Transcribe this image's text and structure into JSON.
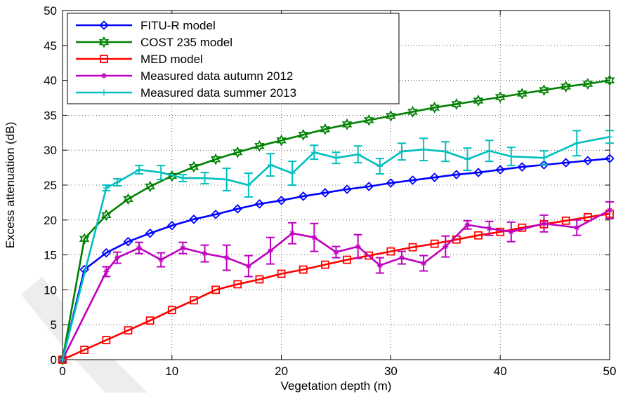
{
  "chart_data": {
    "type": "line",
    "title": "",
    "xlabel": "Vegetation depth (m)",
    "ylabel": "Excess attenuation (dB)",
    "xlim": [
      0,
      50
    ],
    "ylim": [
      0,
      50
    ],
    "xticks": [
      0,
      10,
      20,
      30,
      40,
      50
    ],
    "yticks": [
      0,
      5,
      10,
      15,
      20,
      25,
      30,
      35,
      40,
      45,
      50
    ],
    "grid": true,
    "legend_position": "top-left",
    "series": [
      {
        "name": "FITU-R model",
        "color": "#0000ff",
        "marker": "diamond",
        "x": [
          0,
          2,
          4,
          6,
          8,
          10,
          12,
          14,
          16,
          18,
          20,
          22,
          24,
          26,
          28,
          30,
          32,
          34,
          36,
          38,
          40,
          42,
          44,
          46,
          48,
          50
        ],
        "y": [
          0,
          12.9,
          15.3,
          16.9,
          18.1,
          19.2,
          20.1,
          20.8,
          21.6,
          22.3,
          22.8,
          23.4,
          23.9,
          24.4,
          24.8,
          25.3,
          25.7,
          26.1,
          26.5,
          26.8,
          27.2,
          27.6,
          27.9,
          28.2,
          28.5,
          28.8
        ]
      },
      {
        "name": "COST 235 model",
        "color": "#008000",
        "marker": "hexagram",
        "x": [
          0,
          2,
          4,
          6,
          8,
          10,
          12,
          14,
          16,
          18,
          20,
          22,
          24,
          26,
          28,
          30,
          32,
          34,
          36,
          38,
          40,
          42,
          44,
          46,
          48,
          50
        ],
        "y": [
          0,
          17.3,
          20.7,
          23.0,
          24.8,
          26.3,
          27.6,
          28.7,
          29.7,
          30.6,
          31.4,
          32.2,
          33.0,
          33.7,
          34.3,
          34.9,
          35.5,
          36.1,
          36.6,
          37.1,
          37.6,
          38.1,
          38.6,
          39.1,
          39.5,
          40.0
        ]
      },
      {
        "name": "MED model",
        "color": "#ff0000",
        "marker": "square",
        "x": [
          0,
          2,
          4,
          6,
          8,
          10,
          12,
          14,
          16,
          18,
          20,
          22,
          24,
          26,
          28,
          30,
          32,
          34,
          36,
          38,
          40,
          42,
          44,
          46,
          48,
          50
        ],
        "y": [
          0,
          1.4,
          2.8,
          4.2,
          5.6,
          7.1,
          8.5,
          10.0,
          10.8,
          11.5,
          12.3,
          12.9,
          13.6,
          14.3,
          14.9,
          15.5,
          16.1,
          16.6,
          17.2,
          17.8,
          18.3,
          18.9,
          19.4,
          19.9,
          20.4,
          20.9
        ]
      },
      {
        "name": "Measured data autumn 2012",
        "color": "#bf00bf",
        "marker": "asterisk",
        "errorbars": true,
        "x": [
          0,
          4,
          5,
          7,
          9,
          11,
          13,
          15,
          17,
          19,
          21,
          23,
          25,
          27,
          29,
          31,
          33,
          35,
          37,
          39,
          41,
          44,
          47,
          50
        ],
        "y": [
          0,
          12.6,
          14.6,
          16.0,
          14.3,
          16.0,
          15.2,
          14.6,
          13.4,
          15.6,
          18.1,
          17.5,
          15.4,
          16.2,
          13.5,
          14.6,
          13.8,
          16.2,
          19.3,
          18.8,
          18.3,
          19.5,
          18.9,
          21.4
        ],
        "err": [
          0,
          0.7,
          0.8,
          0.8,
          1.0,
          0.8,
          1.2,
          1.8,
          1.5,
          1.9,
          1.5,
          2.0,
          0.8,
          1.7,
          1.1,
          0.9,
          1.1,
          1.5,
          0.6,
          1.0,
          1.4,
          1.2,
          1.1,
          1.2
        ]
      },
      {
        "name": "Measured data summer 2013",
        "color": "#00bfbf",
        "marker": "plus",
        "errorbars": true,
        "x": [
          0,
          4,
          5,
          7,
          9,
          11,
          13,
          15,
          17,
          19,
          21,
          23,
          25,
          27,
          29,
          31,
          33,
          35,
          37,
          39,
          41,
          44,
          47,
          50
        ],
        "y": [
          0,
          24.6,
          25.4,
          27.2,
          26.8,
          26.0,
          26.0,
          25.8,
          25.0,
          27.9,
          26.7,
          29.7,
          28.9,
          29.4,
          27.7,
          29.8,
          30.1,
          29.8,
          28.7,
          29.9,
          29.1,
          28.9,
          31.0,
          31.9
        ],
        "err": [
          0,
          0.4,
          0.5,
          0.6,
          1.0,
          0.5,
          0.8,
          1.6,
          1.7,
          1.6,
          1.7,
          1.0,
          0.8,
          1.2,
          1.1,
          1.2,
          1.6,
          1.4,
          1.6,
          1.5,
          1.3,
          1.0,
          1.8,
          0.9
        ]
      }
    ]
  }
}
